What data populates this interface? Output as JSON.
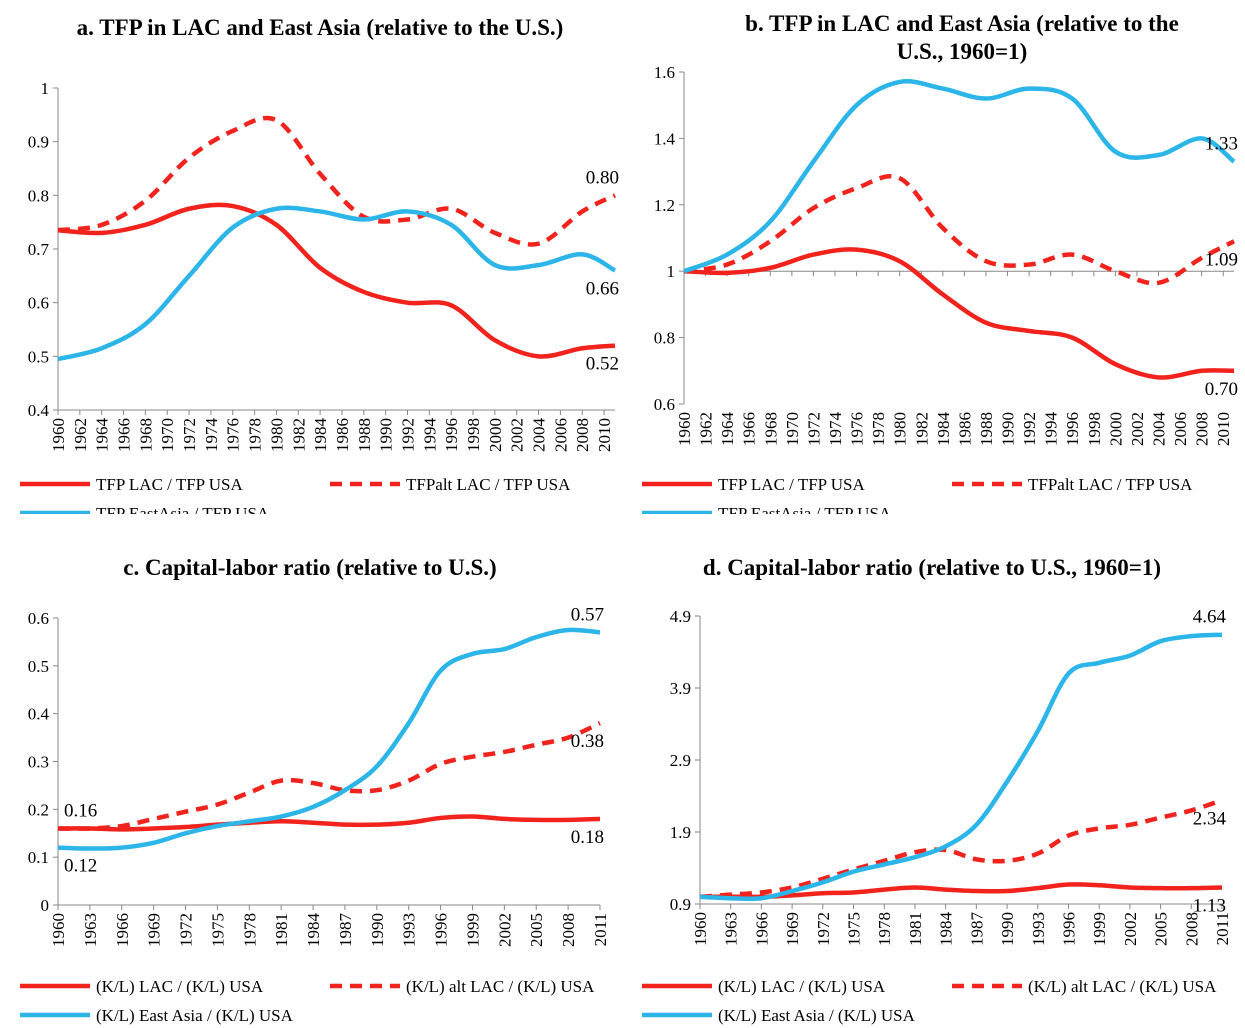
{
  "chart_data": [
    {
      "type": "line",
      "title": "a. TFP in LAC and East Asia (relative to the U.S.)",
      "x": [
        1960,
        1964,
        1968,
        1972,
        1976,
        1980,
        1984,
        1988,
        1992,
        1996,
        2000,
        2004,
        2008,
        2011
      ],
      "xlim": [
        1960,
        2011
      ],
      "xticks": [
        1960,
        1962,
        1964,
        1966,
        1968,
        1970,
        1972,
        1974,
        1976,
        1978,
        1980,
        1982,
        1984,
        1986,
        1988,
        1990,
        1992,
        1994,
        1996,
        1998,
        2000,
        2002,
        2004,
        2006,
        2008,
        2010
      ],
      "ylim": [
        0.4,
        1
      ],
      "yticks": [
        0.4,
        0.5,
        0.6,
        0.7,
        0.8,
        0.9,
        1
      ],
      "series": [
        {
          "name": "TFP LAC / TFP USA",
          "color": "#f2231c",
          "dash": false,
          "values": [
            0.735,
            0.73,
            0.745,
            0.775,
            0.78,
            0.745,
            0.665,
            0.62,
            0.6,
            0.595,
            0.53,
            0.5,
            0.515,
            0.52
          ],
          "value_labels": [
            null,
            null,
            null,
            null,
            null,
            null,
            null,
            null,
            null,
            null,
            null,
            null,
            null,
            "0.52"
          ]
        },
        {
          "name": "TFPalt LAC / TFP USA",
          "color": "#f2231c",
          "dash": true,
          "values": [
            0.735,
            0.745,
            0.79,
            0.87,
            0.92,
            0.94,
            0.84,
            0.76,
            0.755,
            0.775,
            0.73,
            0.71,
            0.77,
            0.8
          ],
          "value_labels": [
            null,
            null,
            null,
            null,
            null,
            null,
            null,
            null,
            null,
            null,
            null,
            null,
            null,
            "0.80"
          ]
        },
        {
          "name": "TFP EastAsia / TFP USA",
          "color": "#2bb5e8",
          "dash": false,
          "values": [
            0.495,
            0.515,
            0.56,
            0.65,
            0.74,
            0.775,
            0.77,
            0.755,
            0.77,
            0.745,
            0.67,
            0.67,
            0.69,
            0.66
          ],
          "value_labels": [
            null,
            null,
            null,
            null,
            null,
            null,
            null,
            null,
            null,
            null,
            null,
            null,
            null,
            "0.66"
          ]
        }
      ]
    },
    {
      "type": "line",
      "title": "b. TFP in LAC and East Asia (relative to the U.S., 1960=1)",
      "x": [
        1960,
        1964,
        1968,
        1972,
        1976,
        1980,
        1984,
        1988,
        1992,
        1996,
        2000,
        2004,
        2008,
        2011
      ],
      "xlim": [
        1960,
        2011
      ],
      "xticks": [
        1960,
        1962,
        1964,
        1966,
        1968,
        1970,
        1972,
        1974,
        1976,
        1978,
        1980,
        1982,
        1984,
        1986,
        1988,
        1990,
        1992,
        1994,
        1996,
        1998,
        2000,
        2002,
        2004,
        2006,
        2008,
        2010
      ],
      "ylim": [
        0.6,
        1.6
      ],
      "yticks": [
        0.6,
        0.8,
        1,
        1.2,
        1.4,
        1.6
      ],
      "xaxis_cross": 1,
      "series": [
        {
          "name": "TFP LAC / TFP USA",
          "color": "#f2231c",
          "dash": false,
          "values": [
            1,
            0.995,
            1.01,
            1.05,
            1.065,
            1.03,
            0.93,
            0.845,
            0.82,
            0.8,
            0.72,
            0.68,
            0.7,
            0.7
          ],
          "value_labels": [
            null,
            null,
            null,
            null,
            null,
            null,
            null,
            null,
            null,
            null,
            null,
            null,
            null,
            "0.70"
          ]
        },
        {
          "name": "TFPalt LAC / TFP USA",
          "color": "#f2231c",
          "dash": true,
          "values": [
            1,
            1.02,
            1.09,
            1.19,
            1.25,
            1.28,
            1.13,
            1.03,
            1.02,
            1.05,
            1,
            0.965,
            1.04,
            1.09
          ],
          "value_labels": [
            null,
            null,
            null,
            null,
            null,
            null,
            null,
            null,
            null,
            null,
            null,
            null,
            null,
            "1.09"
          ]
        },
        {
          "name": "TFP EastAsia / TFP USA",
          "color": "#2bb5e8",
          "dash": false,
          "values": [
            1,
            1.05,
            1.15,
            1.33,
            1.5,
            1.57,
            1.55,
            1.52,
            1.55,
            1.52,
            1.36,
            1.35,
            1.4,
            1.33
          ],
          "value_labels": [
            null,
            null,
            null,
            null,
            null,
            null,
            null,
            null,
            null,
            null,
            null,
            null,
            null,
            "1.33"
          ]
        }
      ]
    },
    {
      "type": "line",
      "title": "c. Capital-labor ratio (relative to U.S.)",
      "x": [
        1960,
        1963,
        1966,
        1969,
        1972,
        1975,
        1978,
        1981,
        1984,
        1987,
        1990,
        1993,
        1996,
        1999,
        2002,
        2005,
        2008,
        2011
      ],
      "xlim": [
        1960,
        2011
      ],
      "xticks": [
        1960,
        1963,
        1966,
        1969,
        1972,
        1975,
        1978,
        1981,
        1984,
        1987,
        1990,
        1993,
        1996,
        1999,
        2002,
        2005,
        2008,
        2011
      ],
      "ylim": [
        0,
        0.6
      ],
      "yticks": [
        0,
        0.1,
        0.2,
        0.3,
        0.4,
        0.5,
        0.6
      ],
      "series": [
        {
          "name": "(K/L) LAC / (K/L) USA",
          "color": "#f2231c",
          "dash": false,
          "values": [
            0.16,
            0.16,
            0.158,
            0.16,
            0.163,
            0.168,
            0.172,
            0.175,
            0.172,
            0.168,
            0.168,
            0.172,
            0.182,
            0.185,
            0.18,
            0.178,
            0.178,
            0.18
          ],
          "value_labels": [
            "0.16",
            null,
            null,
            null,
            null,
            null,
            null,
            null,
            null,
            null,
            null,
            null,
            null,
            null,
            null,
            null,
            null,
            "0.18"
          ]
        },
        {
          "name": "(K/L) alt LAC / (K/L) USA",
          "color": "#f2231c",
          "dash": true,
          "values": [
            0.16,
            0.16,
            0.165,
            0.18,
            0.195,
            0.21,
            0.235,
            0.26,
            0.255,
            0.24,
            0.24,
            0.26,
            0.295,
            0.31,
            0.32,
            0.335,
            0.35,
            0.38
          ],
          "value_labels": [
            null,
            null,
            null,
            null,
            null,
            null,
            null,
            null,
            null,
            null,
            null,
            null,
            null,
            null,
            null,
            null,
            null,
            "0.38"
          ]
        },
        {
          "name": "(K/L) East Asia / (K/L) USA",
          "color": "#2bb5e8",
          "dash": false,
          "values": [
            0.12,
            0.118,
            0.12,
            0.13,
            0.15,
            0.165,
            0.175,
            0.185,
            0.205,
            0.24,
            0.29,
            0.38,
            0.49,
            0.525,
            0.535,
            0.56,
            0.575,
            0.57
          ],
          "value_labels": [
            "0.12",
            null,
            null,
            null,
            null,
            null,
            null,
            null,
            null,
            null,
            null,
            null,
            null,
            null,
            null,
            null,
            null,
            "0.57"
          ]
        }
      ]
    },
    {
      "type": "line",
      "title": "d. Capital-labor ratio (relative to U.S., 1960=1)",
      "x": [
        1960,
        1963,
        1966,
        1969,
        1972,
        1975,
        1978,
        1981,
        1984,
        1987,
        1990,
        1993,
        1996,
        1999,
        2002,
        2005,
        2008,
        2011
      ],
      "xlim": [
        1960,
        2011
      ],
      "xticks": [
        1960,
        1963,
        1966,
        1969,
        1972,
        1975,
        1978,
        1981,
        1984,
        1987,
        1990,
        1993,
        1996,
        1999,
        2002,
        2005,
        2008,
        2011
      ],
      "ylim": [
        0.9,
        4.9
      ],
      "yticks": [
        0.9,
        1.9,
        2.9,
        3.9,
        4.9
      ],
      "series": [
        {
          "name": "(K/L) LAC / (K/L) USA",
          "color": "#f2231c",
          "dash": false,
          "values": [
            1,
            1,
            1,
            1.02,
            1.05,
            1.06,
            1.1,
            1.13,
            1.1,
            1.08,
            1.08,
            1.12,
            1.17,
            1.16,
            1.13,
            1.12,
            1.12,
            1.13
          ],
          "value_labels": [
            null,
            null,
            null,
            null,
            null,
            null,
            null,
            null,
            null,
            null,
            null,
            null,
            null,
            null,
            null,
            null,
            null,
            "1.13"
          ]
        },
        {
          "name": "(K/L) alt LAC / (K/L) USA",
          "color": "#f2231c",
          "dash": true,
          "values": [
            1,
            1.03,
            1.06,
            1.13,
            1.25,
            1.38,
            1.5,
            1.62,
            1.65,
            1.52,
            1.5,
            1.6,
            1.85,
            1.95,
            2,
            2.1,
            2.2,
            2.34
          ],
          "value_labels": [
            null,
            null,
            null,
            null,
            null,
            null,
            null,
            null,
            null,
            null,
            null,
            null,
            null,
            null,
            null,
            null,
            null,
            "2.34"
          ]
        },
        {
          "name": "(K/L) East Asia / (K/L) USA",
          "color": "#2bb5e8",
          "dash": false,
          "values": [
            1,
            0.98,
            0.98,
            1.08,
            1.2,
            1.35,
            1.45,
            1.55,
            1.7,
            2,
            2.6,
            3.3,
            4.1,
            4.25,
            4.35,
            4.55,
            4.62,
            4.64
          ],
          "value_labels": [
            null,
            null,
            null,
            null,
            null,
            null,
            null,
            null,
            null,
            null,
            null,
            null,
            null,
            null,
            null,
            null,
            null,
            "4.64"
          ]
        }
      ]
    }
  ]
}
